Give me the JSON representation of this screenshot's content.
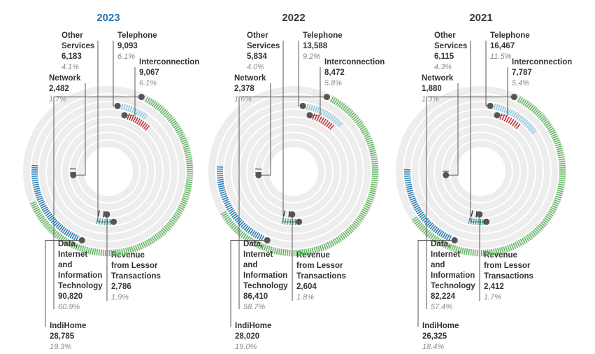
{
  "chart_data": [
    {
      "type": "radial-bar",
      "title": "2023",
      "title_highlight": true,
      "segments": [
        {
          "name": "Other Services",
          "lines": [
            "Other",
            "Services"
          ],
          "value": "6,183",
          "percent": "4.1%",
          "pct_num": 4.1,
          "color": "#3fa7a7"
        },
        {
          "name": "Telephone",
          "lines": [
            "Telephone"
          ],
          "value": "9,093",
          "percent": "6.1%",
          "pct_num": 6.1,
          "color": "#8ecae6"
        },
        {
          "name": "Interconnection",
          "lines": [
            "Interconnection"
          ],
          "value": "9,067",
          "percent": "6.1%",
          "pct_num": 6.1,
          "color": "#c1272d"
        },
        {
          "name": "Network",
          "lines": [
            "Network"
          ],
          "value": "2,482",
          "percent": "1.7%",
          "pct_num": 1.7,
          "color": "#555555"
        },
        {
          "name": "Revenue from Lessor Transactions",
          "lines": [
            "Revenue",
            "from Lessor",
            "Transactions"
          ],
          "value": "2,786",
          "percent": "1.9%",
          "pct_num": 1.9,
          "color": "#333333"
        },
        {
          "name": "Data, Internet and Information Technology",
          "lines": [
            "Data,",
            "Internet",
            "and",
            "Information",
            "Technology"
          ],
          "value": "90,820",
          "percent": "60.9%",
          "pct_num": 60.9,
          "color": "#5cb85c"
        },
        {
          "name": "IndiHome",
          "lines": [
            "IndiHome"
          ],
          "value": "28,785",
          "percent": "19.3%",
          "pct_num": 19.3,
          "color": "#1f78b4"
        }
      ]
    },
    {
      "type": "radial-bar",
      "title": "2022",
      "title_highlight": false,
      "segments": [
        {
          "name": "Other Services",
          "lines": [
            "Other",
            "Services"
          ],
          "value": "5,834",
          "percent": "4.0%",
          "pct_num": 4.0,
          "color": "#3fa7a7"
        },
        {
          "name": "Telephone",
          "lines": [
            "Telephone"
          ],
          "value": "13,588",
          "percent": "9.2%",
          "pct_num": 9.2,
          "color": "#8ecae6"
        },
        {
          "name": "Interconnection",
          "lines": [
            "Interconnection"
          ],
          "value": "8,472",
          "percent": "5.8%",
          "pct_num": 5.8,
          "color": "#c1272d"
        },
        {
          "name": "Network",
          "lines": [
            "Network"
          ],
          "value": "2,378",
          "percent": "1.6%",
          "pct_num": 1.6,
          "color": "#555555"
        },
        {
          "name": "Revenue from Lessor Transactions",
          "lines": [
            "Revenue",
            "from Lessor",
            "Transactions"
          ],
          "value": "2,604",
          "percent": "1.8%",
          "pct_num": 1.8,
          "color": "#333333"
        },
        {
          "name": "Data, Internet and Information Technology",
          "lines": [
            "Data,",
            "Internet",
            "and",
            "Information",
            "Technology"
          ],
          "value": "86,410",
          "percent": "58.7%",
          "pct_num": 58.7,
          "color": "#5cb85c"
        },
        {
          "name": "IndiHome",
          "lines": [
            "IndiHome"
          ],
          "value": "28,020",
          "percent": "19.0%",
          "pct_num": 19.0,
          "color": "#1f78b4"
        }
      ]
    },
    {
      "type": "radial-bar",
      "title": "2021",
      "title_highlight": false,
      "segments": [
        {
          "name": "Other Services",
          "lines": [
            "Other",
            "Services"
          ],
          "value": "6,115",
          "percent": "4.3%",
          "pct_num": 4.3,
          "color": "#3fa7a7"
        },
        {
          "name": "Telephone",
          "lines": [
            "Telephone"
          ],
          "value": "16,467",
          "percent": "11.5%",
          "pct_num": 11.5,
          "color": "#8ecae6"
        },
        {
          "name": "Interconnection",
          "lines": [
            "Interconnection"
          ],
          "value": "7,787",
          "percent": "5.4%",
          "pct_num": 5.4,
          "color": "#c1272d"
        },
        {
          "name": "Network",
          "lines": [
            "Network"
          ],
          "value": "1,880",
          "percent": "1.3%",
          "pct_num": 1.3,
          "color": "#555555"
        },
        {
          "name": "Revenue from Lessor Transactions",
          "lines": [
            "Revenue",
            "from Lessor",
            "Transactions"
          ],
          "value": "2,412",
          "percent": "1.7%",
          "pct_num": 1.7,
          "color": "#333333"
        },
        {
          "name": "Data, Internet and Information Technology",
          "lines": [
            "Data,",
            "Internet",
            "and",
            "Information",
            "Technology"
          ],
          "value": "82,224",
          "percent": "57.4%",
          "pct_num": 57.4,
          "color": "#5cb85c"
        },
        {
          "name": "IndiHome",
          "lines": [
            "IndiHome"
          ],
          "value": "26,325",
          "percent": "18.4%",
          "pct_num": 18.4,
          "color": "#1f78b4"
        }
      ]
    }
  ]
}
